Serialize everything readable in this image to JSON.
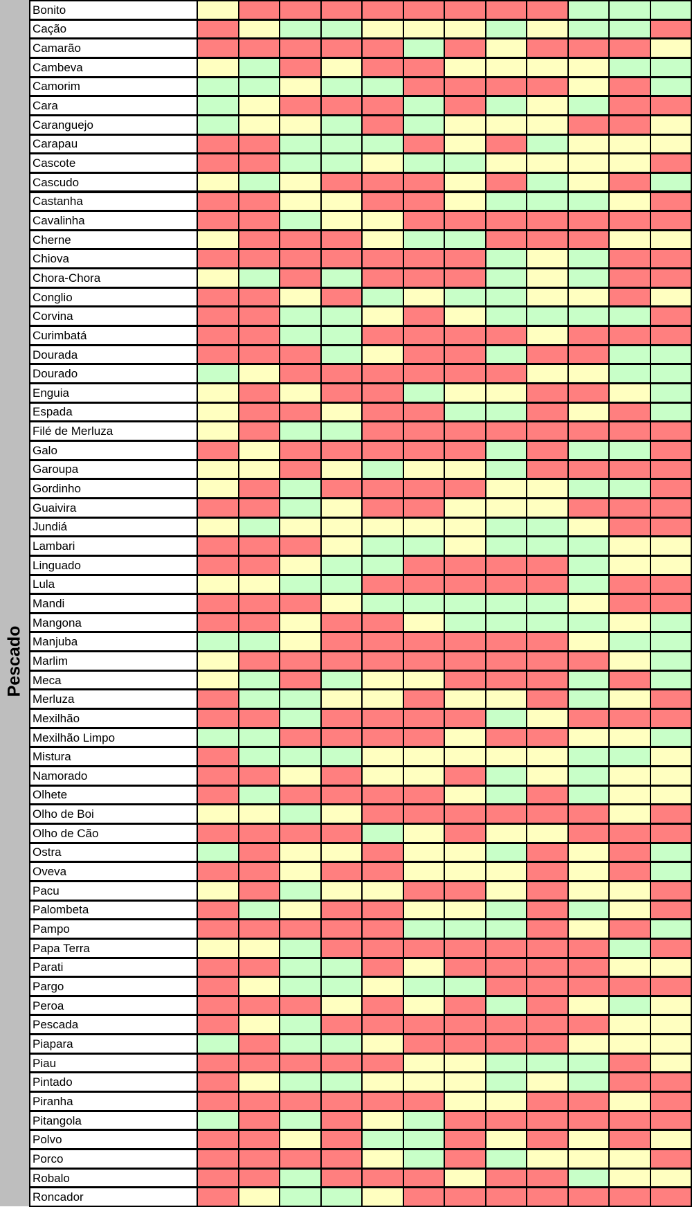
{
  "group_label": "Pescado",
  "colors": {
    "red": "#ff7f7f",
    "yellow": "#ffffc0",
    "green": "#c8ffc8"
  },
  "chart_data": {
    "type": "heatmap",
    "category_group": "Pescado",
    "legend": {
      "R": "red",
      "Y": "yellow",
      "G": "green"
    },
    "rows": [
      {
        "name": "Bonito",
        "values": "YRRRRRRRRGGG"
      },
      {
        "name": "Cação",
        "values": "RYGGYYYGYGGR"
      },
      {
        "name": "Camarão",
        "values": "RRRRRGRYRRRY"
      },
      {
        "name": "Cambeva",
        "values": "YGRYRRYYYYGG"
      },
      {
        "name": "Camorim",
        "values": "GGYGGRRRRYRG"
      },
      {
        "name": "Cara",
        "values": "GYRRRGRGYGRR"
      },
      {
        "name": "Caranguejo",
        "values": "GYYGRGYYYRRY"
      },
      {
        "name": "Carapau",
        "values": "RRGGGRYRGYYY"
      },
      {
        "name": "Cascote",
        "values": "RRGGYGGYYYYR"
      },
      {
        "name": "Cascudo",
        "values": "YGYRRRYRGYRG"
      },
      {
        "name": "Castanha",
        "values": "RRYYRRYGGGYR"
      },
      {
        "name": "Cavalinha",
        "values": "RRGYYRRRRRRR"
      },
      {
        "name": "Cherne",
        "values": "YRRRYGGRRRYY"
      },
      {
        "name": "Chiova",
        "values": "RRRRRRRGYGRR"
      },
      {
        "name": "Chora-Chora",
        "values": "YGRGRRRGYGRR"
      },
      {
        "name": "Conglio",
        "values": "RRYRGYGGYYRY"
      },
      {
        "name": "Corvina",
        "values": "RRGGYRYGGGGR"
      },
      {
        "name": "Curimbatá",
        "values": "RRGGRRRRYRRR"
      },
      {
        "name": "Dourada",
        "values": "RRRGYRRGRRGG"
      },
      {
        "name": "Dourado",
        "values": "GYRRRRRRYYGG"
      },
      {
        "name": "Enguia",
        "values": "YRYRRGYYRRYG"
      },
      {
        "name": "Espada",
        "values": "YRRYRRGGRYRG"
      },
      {
        "name": "Filé de Merluza",
        "values": "YRGGRRRRRRRR"
      },
      {
        "name": "Galo",
        "values": "RYRRRRRGRGGR"
      },
      {
        "name": "Garoupa",
        "values": "YYRYGYYGRRRR"
      },
      {
        "name": "Gordinho",
        "values": "YRGRRRRYYGGR"
      },
      {
        "name": "Guaivira",
        "values": "RRGYRRYYYRRR"
      },
      {
        "name": "Jundiá",
        "values": "YGYYYYYGGYRR"
      },
      {
        "name": "Lambari",
        "values": "RRRYGGYGGGYY"
      },
      {
        "name": "Linguado",
        "values": "RRYGGRRRRGYY"
      },
      {
        "name": "Lula",
        "values": "YYGGRRRRRGRR"
      },
      {
        "name": "Mandi",
        "values": "RRRYGGGGGYRR"
      },
      {
        "name": "Mangona",
        "values": "RRYRRYGGGGYG"
      },
      {
        "name": "Manjuba",
        "values": "GGYRRRRRRYGG"
      },
      {
        "name": "Marlim",
        "values": "YRRRRRRRRRYG"
      },
      {
        "name": "Meca",
        "values": "YGRGYYRRRGRG"
      },
      {
        "name": "Merluza",
        "values": "RGGYYRYYRGYR"
      },
      {
        "name": "Mexilhão",
        "values": "RRGRRRRGYRRR"
      },
      {
        "name": "Mexilhão Limpo",
        "values": "GGRRRRYRRYYG"
      },
      {
        "name": "Mistura",
        "values": "RGGGYYYYYGGY"
      },
      {
        "name": "Namorado",
        "values": "RRYRYYRGYGYY"
      },
      {
        "name": "Olhete",
        "values": "RGRRRRYGRGYY"
      },
      {
        "name": "Olho de Boi",
        "values": "YYGYRRRRRRYR"
      },
      {
        "name": "Olho de Cão",
        "values": "RRRRGYRYYRRR"
      },
      {
        "name": "Ostra",
        "values": "GRYYRYYGRYRG"
      },
      {
        "name": "Oveva",
        "values": "RRYRRYYYRYRG"
      },
      {
        "name": "Pacu",
        "values": "YRGYYRRYRYYR"
      },
      {
        "name": "Palombeta",
        "values": "RGYRRYYGRGYR"
      },
      {
        "name": "Pampo",
        "values": "RRRRRGGGRYRG"
      },
      {
        "name": "Papa Terra",
        "values": "YYGRRRRRRRGR"
      },
      {
        "name": "Parati",
        "values": "RRGGRYRRRRYY"
      },
      {
        "name": "Pargo",
        "values": "RYGGYGGRRRRR"
      },
      {
        "name": "Peroa",
        "values": "RRRYRYRGRYGY"
      },
      {
        "name": "Pescada",
        "values": "RYGRRRRRRRYY"
      },
      {
        "name": "Piapara",
        "values": "GRGGYRRRRYYY"
      },
      {
        "name": "Piau",
        "values": "RRRRRYYGGGRY"
      },
      {
        "name": "Pintado",
        "values": "RYGGYYYGYGRR"
      },
      {
        "name": "Piranha",
        "values": "RRRRRRYYRRYR"
      },
      {
        "name": "Pitangola",
        "values": "GRGRYGRRRRRR"
      },
      {
        "name": "Polvo",
        "values": "RRYRGGRYRYRY"
      },
      {
        "name": "Porco",
        "values": "RRRRYGRGYYYR"
      },
      {
        "name": "Robalo",
        "values": "RRGRRRYRRGYY"
      },
      {
        "name": "Roncador",
        "values": "RYGGYRRRRRRR"
      }
    ]
  }
}
